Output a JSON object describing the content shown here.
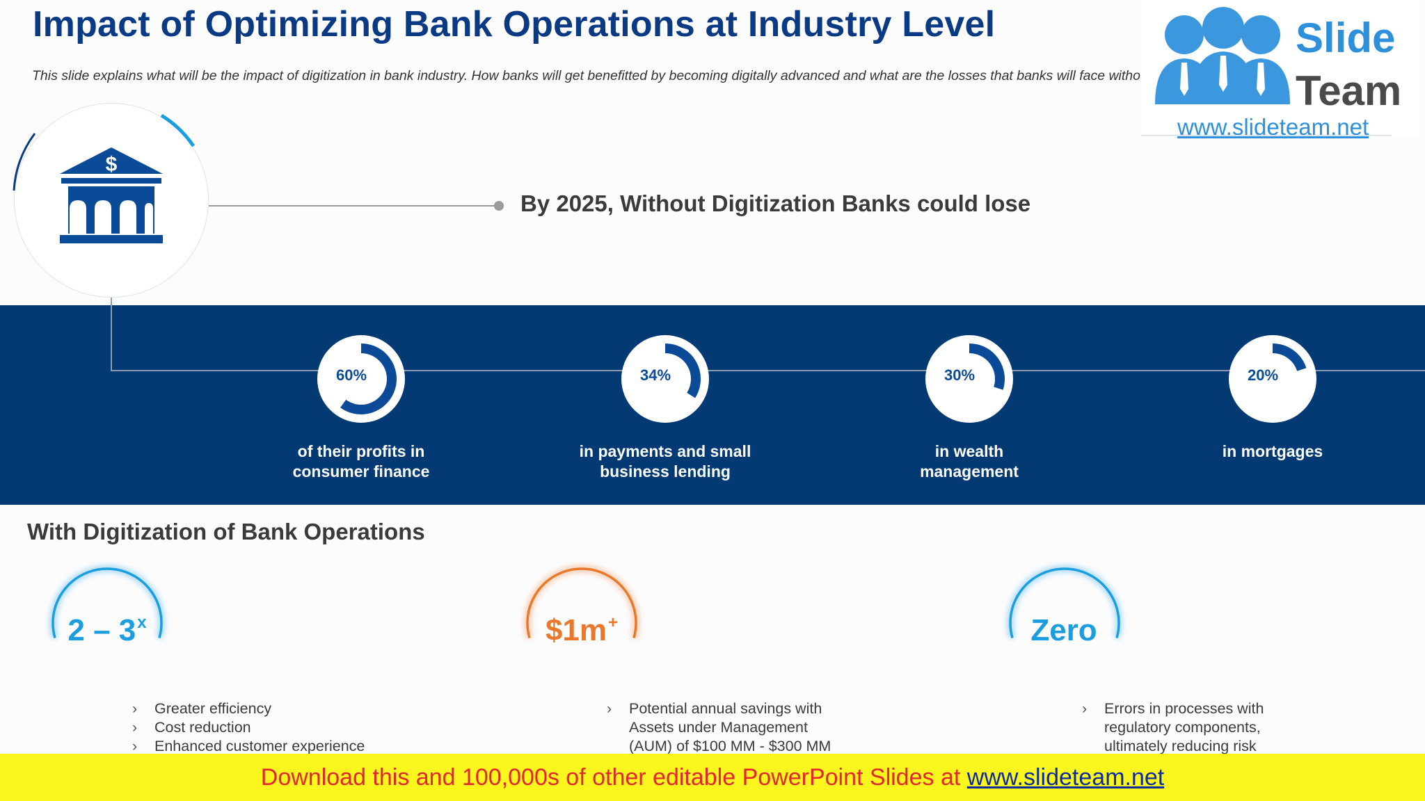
{
  "title": "Impact of Optimizing Bank Operations at Industry Level",
  "subtitle": "This slide explains what will be the impact of digitization in bank industry. How banks will get benefitted by becoming digitally advanced and what are the losses that banks will face without digitization",
  "logo": {
    "slide": "Slide",
    "team": "Team",
    "url": "www.slideteam.net",
    "color": "#2e8fda"
  },
  "icons": {
    "bank": "bank-building-dollar-icon",
    "logo_people": "people-group-icon"
  },
  "lose_heading": "By 2025, Without Digitization Banks could lose",
  "stats": [
    {
      "pct_label": "60%",
      "fraction": 0.6,
      "desc_line1": "of their profits in",
      "desc_line2": "consumer finance"
    },
    {
      "pct_label": "34%",
      "fraction": 0.34,
      "desc_line1": "in payments and small",
      "desc_line2": "business lending"
    },
    {
      "pct_label": "30%",
      "fraction": 0.3,
      "desc_line1": "in wealth",
      "desc_line2": "management"
    },
    {
      "pct_label": "20%",
      "fraction": 0.2,
      "desc_line1": "in mortgages",
      "desc_line2": ""
    }
  ],
  "digitization_heading": "With Digitization of Bank Operations",
  "metrics": [
    {
      "value": "2 – 3",
      "suffix": "x",
      "color": "#1a9ee0",
      "bullets": [
        "Greater efficiency",
        "Cost reduction",
        "Enhanced customer experience"
      ]
    },
    {
      "value": "$1m",
      "suffix": "+",
      "color": "#e8792c",
      "bullets": [
        "Potential annual savings with",
        "Assets under Management",
        "(AUM) of $100 MM - $300 MM"
      ]
    },
    {
      "value": "Zero",
      "suffix": "",
      "color": "#1a9ee0",
      "bullets": [
        "Errors in processes  with",
        "regulatory components,",
        "ultimately reducing risk"
      ]
    }
  ],
  "colors": {
    "title": "#0b3a85",
    "band": "#033a73",
    "donut": "#0b4a97",
    "footer_bg": "#fbf71e",
    "footer_text": "#e3262d",
    "footer_link": "#0d2a9e"
  },
  "footer": {
    "text": "Download this and 100,000s of other editable PowerPoint Slides at ",
    "link": "www.slideteam.net"
  }
}
